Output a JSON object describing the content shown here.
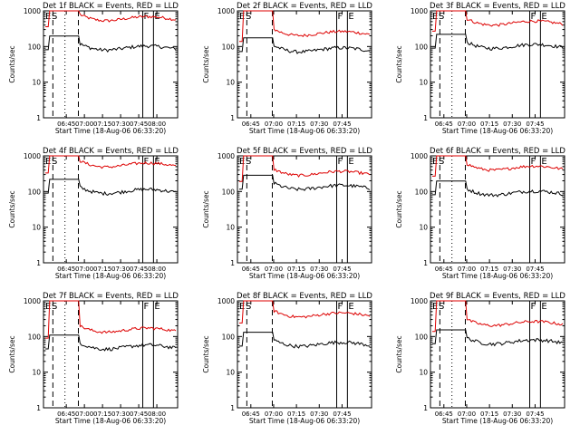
{
  "chart_data": {
    "type": "line",
    "ylabel": "Counts/sec",
    "xlabel": "Start Time (18-Aug-06 06:33:20)",
    "y_scale": "log",
    "y_ticks": [
      "1",
      "10",
      "100",
      "1000"
    ],
    "x_ticks": [
      "06:45",
      "07:00",
      "07:15",
      "07:30",
      "07:45",
      "08:00"
    ],
    "colors": {
      "events": "#000000",
      "lld": "#dd0000"
    },
    "series_names": {
      "events": "BLACK = Events",
      "lld": "RED = LLD"
    },
    "panels": [
      {
        "title": "Det 1f BLACK = Events, RED = LLD",
        "tick_set": "B",
        "spike": "low",
        "flags": [
          "E",
          "S",
          "F",
          "E"
        ],
        "lld_level": 600,
        "events_level": 90
      },
      {
        "title": "Det 2f BLACK = Events, RED = LLD",
        "tick_set": "A",
        "spike": "high",
        "flags": [
          "E",
          "S",
          "F",
          "E"
        ],
        "lld_level": 230,
        "events_level": 80
      },
      {
        "title": "Det 3f BLACK = Events, RED = LLD",
        "tick_set": "A",
        "spike": "low",
        "flags": [
          "E",
          "S",
          "F",
          "E"
        ],
        "lld_level": 450,
        "events_level": 100
      },
      {
        "title": "Det 4f BLACK = Events, RED = LLD",
        "tick_set": "B",
        "spike": "low",
        "flags": [
          "E",
          "S",
          "F",
          "E"
        ],
        "lld_level": 550,
        "events_level": 100
      },
      {
        "title": "Det 5f BLACK = Events, RED = LLD",
        "tick_set": "A",
        "spike": "high",
        "flags": [
          "E",
          "S",
          "F",
          "E"
        ],
        "lld_level": 320,
        "events_level": 130
      },
      {
        "title": "Det 6f BLACK = Events, RED = LLD",
        "tick_set": "A",
        "spike": "low",
        "flags": [
          "E",
          "S",
          "F",
          "E"
        ],
        "lld_level": 450,
        "events_level": 90
      },
      {
        "title": "Det 7f BLACK = Events, RED = LLD",
        "tick_set": "B",
        "spike": "low",
        "flags": [
          "E",
          "S",
          "F",
          "E"
        ],
        "lld_level": 150,
        "events_level": 50
      },
      {
        "title": "Det 8f BLACK = Events, RED = LLD",
        "tick_set": "A",
        "spike": "high",
        "flags": [
          "E",
          "S",
          "F",
          "E"
        ],
        "lld_level": 400,
        "events_level": 60
      },
      {
        "title": "Det 9f BLACK = Events, RED = LLD",
        "tick_set": "A",
        "spike": "low",
        "flags": [
          "E",
          "S",
          "F",
          "E"
        ],
        "lld_level": 230,
        "events_level": 70
      }
    ]
  }
}
